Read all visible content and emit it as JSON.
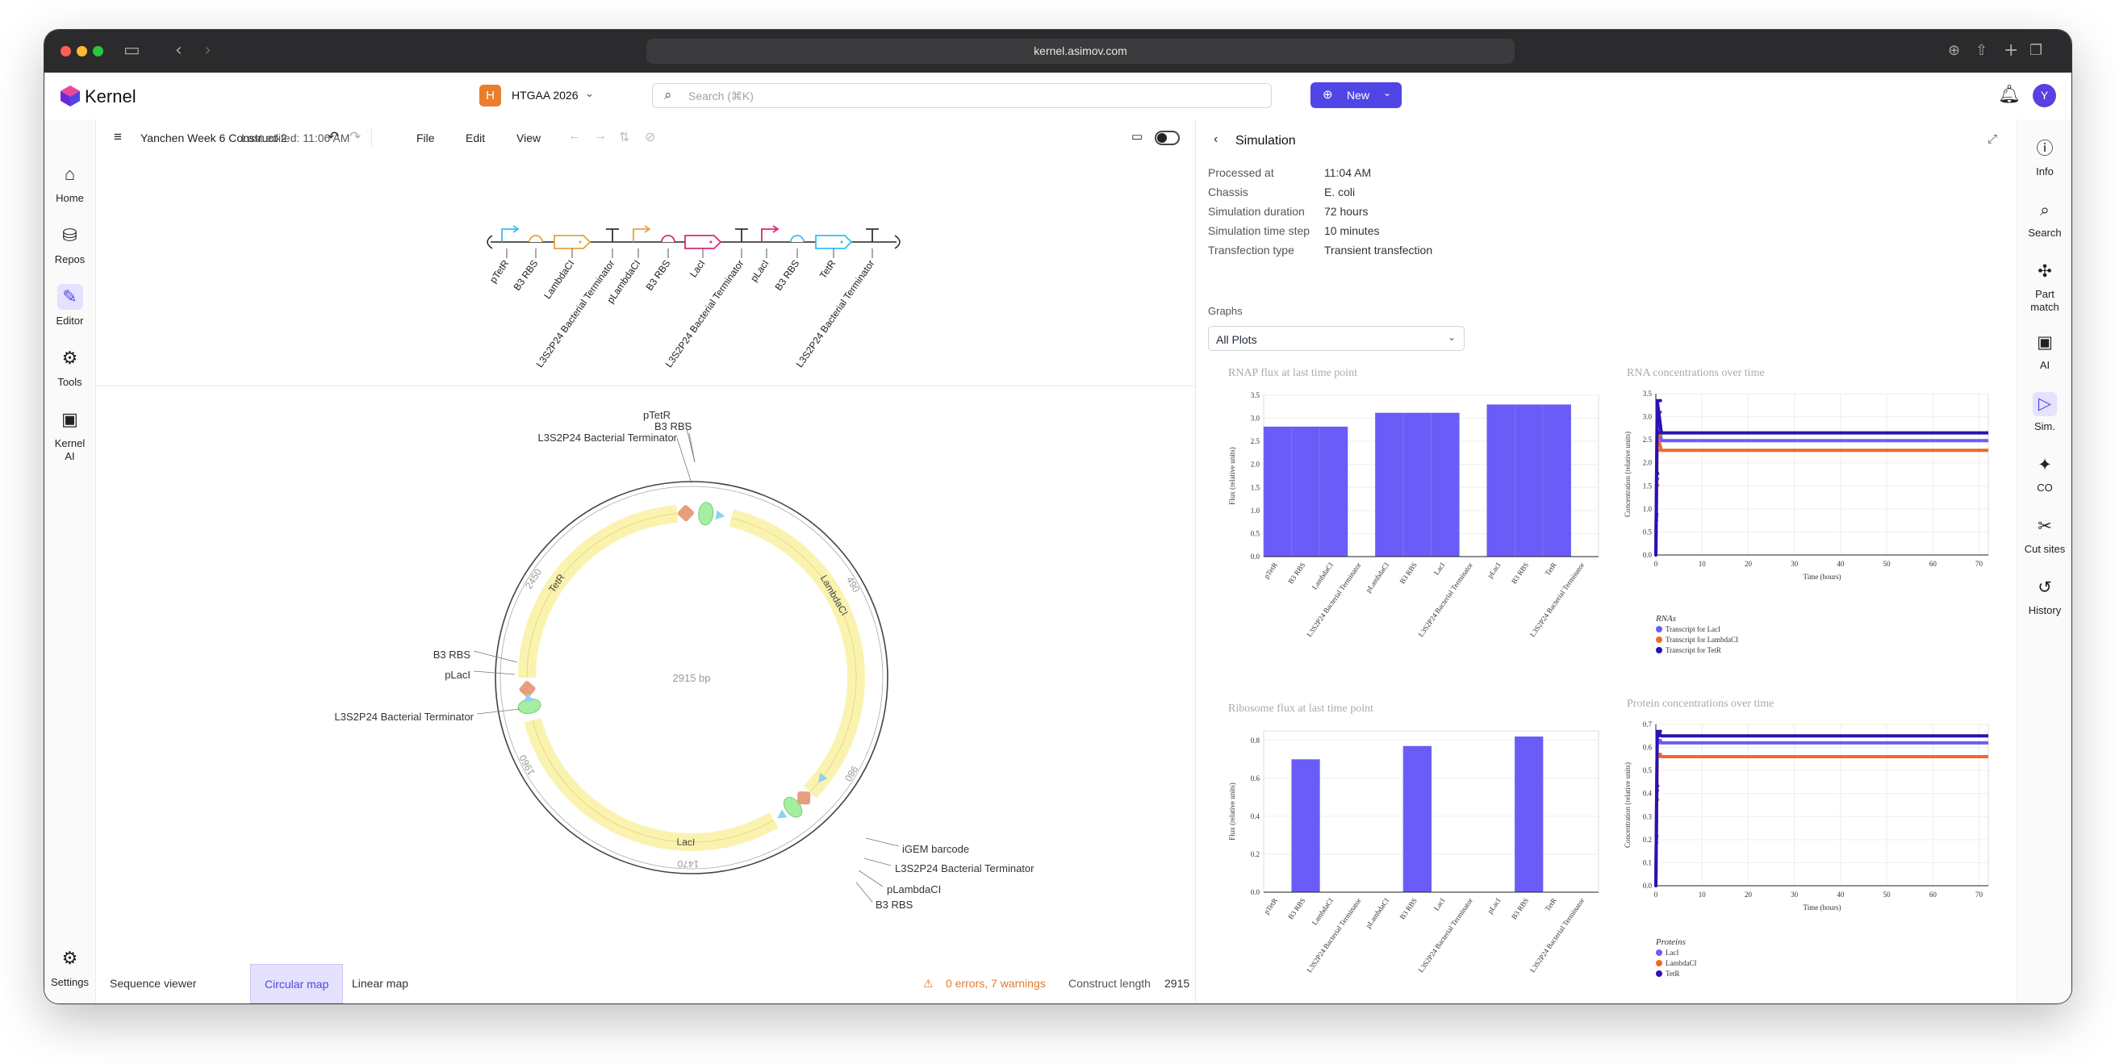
{
  "browser": {
    "url": "kernel.asimov.com"
  },
  "app": {
    "brand": "Kernel",
    "project_initial": "H",
    "project_name": "HTGAA 2026",
    "search_placeholder": "Search (⌘K)",
    "new_label": "New",
    "avatar_initial": "Y",
    "accent": "#4f46e5"
  },
  "left_nav": [
    {
      "label": "Home",
      "icon": "home-icon"
    },
    {
      "label": "Repos",
      "icon": "database-icon"
    },
    {
      "label": "Editor",
      "icon": "pencil-ruler-icon"
    },
    {
      "label": "Tools",
      "icon": "tools-icon"
    },
    {
      "label": "Kernel",
      "label2": "AI",
      "icon": "chip-icon"
    },
    {
      "label": "Settings",
      "icon": "gear-icon"
    }
  ],
  "editor": {
    "doc_title": "Yanchen Week 6 Construct-2",
    "last_edited": "Last edited: 11:06 AM",
    "menu": [
      "File",
      "Edit",
      "View"
    ]
  },
  "linear_map": {
    "parts": [
      {
        "label": "pTetR",
        "color": "#38bdf8",
        "kind": "promoter"
      },
      {
        "label": "B3 RBS",
        "color": "#e9a23b",
        "kind": "rbs"
      },
      {
        "label": "LambdaCI",
        "color": "#e9a23b",
        "kind": "cds"
      },
      {
        "label": "L3S2P24 Bacterial Terminator",
        "color": "#333",
        "kind": "terminator"
      },
      {
        "label": "pLambdaCI",
        "color": "#e9a23b",
        "kind": "promoter"
      },
      {
        "label": "B3 RBS",
        "color": "#db2777",
        "kind": "rbs"
      },
      {
        "label": "LacI",
        "color": "#db2777",
        "kind": "cds"
      },
      {
        "label": "L3S2P24 Bacterial Terminator",
        "color": "#333",
        "kind": "terminator"
      },
      {
        "label": "pLacI",
        "color": "#db2777",
        "kind": "promoter"
      },
      {
        "label": "B3 RBS",
        "color": "#38bdf8",
        "kind": "rbs"
      },
      {
        "label": "TetR",
        "color": "#38bdf8",
        "kind": "cds"
      },
      {
        "label": "L3S2P24 Bacterial Terminator",
        "color": "#333",
        "kind": "terminator"
      }
    ]
  },
  "circular_map": {
    "center_label": "2915 bp",
    "ticks": [
      "490",
      "980",
      "1470",
      "1960",
      "2450"
    ],
    "feature_labels": [
      "TetR",
      "LambdaCI",
      "LacI"
    ],
    "annotations": [
      "pTetR",
      "B3 RBS",
      "L3S2P24 Bacterial Terminator",
      "B3 RBS",
      "pLacI",
      "L3S2P24 Bacterial Terminator",
      "iGEM barcode",
      "L3S2P24 Bacterial Terminator",
      "pLambdaCI",
      "B3 RBS"
    ]
  },
  "bottom": {
    "tabs": [
      "Sequence viewer",
      "Circular map",
      "Linear map"
    ],
    "status": "0 errors, 7 warnings",
    "length_label": "Construct length",
    "length_value": "2915"
  },
  "simulation": {
    "title": "Simulation",
    "info": [
      {
        "k": "Processed at",
        "v": "11:04 AM"
      },
      {
        "k": "Chassis",
        "v": "E. coli"
      },
      {
        "k": "Simulation duration",
        "v": "72 hours"
      },
      {
        "k": "Simulation time step",
        "v": "10 minutes"
      },
      {
        "k": "Transfection type",
        "v": "Transient transfection"
      }
    ],
    "graphs_label": "Graphs",
    "graphs_value": "All Plots"
  },
  "right_nav": [
    {
      "label": "Info",
      "icon": "info-icon"
    },
    {
      "label": "Search",
      "icon": "search-icon"
    },
    {
      "label": "Part",
      "label2": "match",
      "icon": "puzzle-icon"
    },
    {
      "label": "AI",
      "icon": "chip-icon"
    },
    {
      "label": "Sim.",
      "icon": "play-icon"
    },
    {
      "label": "CO",
      "icon": "sparkle-icon"
    },
    {
      "label": "Cut sites",
      "icon": "scissors-icon"
    },
    {
      "label": "History",
      "icon": "history-icon"
    }
  ],
  "chart_data": [
    {
      "type": "bar",
      "title": "RNAP flux at last time point",
      "ylabel": "Flux (relative units)",
      "ylim": [
        0,
        3.5
      ],
      "yticks": [
        "0.0",
        "0.5",
        "1.0",
        "1.5",
        "2.0",
        "2.5",
        "3.0",
        "3.5"
      ],
      "categories": [
        "pTetR",
        "B3 RBS",
        "LambdaCI",
        "L3S2P24 Bacterial Terminator",
        "pLambdaCI",
        "B3 RBS",
        "LacI",
        "L3S2P24 Bacterial Terminator",
        "pLacI",
        "B3 RBS",
        "TetR",
        "L3S2P24 Bacterial Terminator"
      ],
      "values": [
        2.82,
        2.82,
        2.82,
        0,
        3.12,
        3.12,
        3.12,
        0,
        3.3,
        3.3,
        3.3,
        0
      ],
      "color": "#6a5cf6"
    },
    {
      "type": "line",
      "title": "RNA concentrations over time",
      "xlabel": "Time (hours)",
      "ylabel": "Concentration (relative units)",
      "xlim": [
        0,
        72
      ],
      "ylim": [
        0,
        3.5
      ],
      "xticks": [
        "0",
        "10",
        "20",
        "30",
        "40",
        "50",
        "60",
        "70"
      ],
      "yticks": [
        "0.0",
        "0.5",
        "1.0",
        "1.5",
        "2.0",
        "2.5",
        "3.0",
        "3.5"
      ],
      "legend_title": "RNAs",
      "series": [
        {
          "name": "Transcript for LacI",
          "color": "#6a5cf6",
          "steady": 2.48,
          "peak": 3.1
        },
        {
          "name": "Transcript for LambdaCI",
          "color": "#ee6a2a",
          "steady": 2.27,
          "peak": 2.6
        },
        {
          "name": "Transcript for TetR",
          "color": "#2a11b3",
          "steady": 2.65,
          "peak": 3.35
        }
      ]
    },
    {
      "type": "bar",
      "title": "Ribosome flux at last time point",
      "ylabel": "Flux (relative units)",
      "ylim": [
        0,
        0.85
      ],
      "yticks": [
        "0.0",
        "0.2",
        "0.4",
        "0.6",
        "0.8"
      ],
      "categories": [
        "pTetR",
        "B3 RBS",
        "LambdaCI",
        "L3S2P24 Bacterial Terminator",
        "pLambdaCI",
        "B3 RBS",
        "LacI",
        "L3S2P24 Bacterial Terminator",
        "pLacI",
        "B3 RBS",
        "TetR",
        "L3S2P24 Bacterial Terminator"
      ],
      "values": [
        0,
        0.7,
        0,
        0,
        0,
        0.77,
        0,
        0,
        0,
        0.82,
        0,
        0
      ],
      "color": "#6a5cf6"
    },
    {
      "type": "line",
      "title": "Protein concentrations over time",
      "xlabel": "Time (hours)",
      "ylabel": "Concentration (relative units)",
      "xlim": [
        0,
        72
      ],
      "ylim": [
        0,
        0.7
      ],
      "xticks": [
        "0",
        "10",
        "20",
        "30",
        "40",
        "50",
        "60",
        "70"
      ],
      "yticks": [
        "0.0",
        "0.1",
        "0.2",
        "0.3",
        "0.4",
        "0.5",
        "0.6",
        "0.7"
      ],
      "legend_title": "Proteins",
      "series": [
        {
          "name": "LacI",
          "color": "#6a5cf6",
          "steady": 0.62,
          "peak": 0.63
        },
        {
          "name": "LambdaCI",
          "color": "#ee6a2a",
          "steady": 0.56,
          "peak": 0.57
        },
        {
          "name": "TetR",
          "color": "#2a11b3",
          "steady": 0.65,
          "peak": 0.67
        }
      ]
    }
  ]
}
